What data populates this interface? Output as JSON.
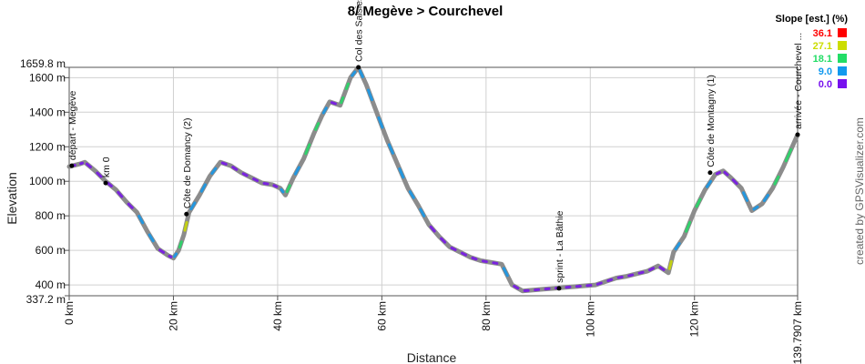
{
  "chart_data": {
    "type": "line",
    "title": "8/ Megève > Courchevel",
    "xlabel": "Distance",
    "ylabel": "Elevation",
    "xlim": [
      0,
      139.7907
    ],
    "ylim": [
      337.2,
      1659.8
    ],
    "x_ticks": [
      {
        "value": 0,
        "label": "0 km"
      },
      {
        "value": 20,
        "label": "20 km"
      },
      {
        "value": 40,
        "label": "40 km"
      },
      {
        "value": 60,
        "label": "60 km"
      },
      {
        "value": 80,
        "label": "80 km"
      },
      {
        "value": 100,
        "label": "100 km"
      },
      {
        "value": 120,
        "label": "120 km"
      },
      {
        "value": 139.7907,
        "label": "139.7907 km"
      }
    ],
    "y_ticks": [
      {
        "value": 337.2,
        "label": "337.2 m"
      },
      {
        "value": 400,
        "label": "400 m"
      },
      {
        "value": 600,
        "label": "600 m"
      },
      {
        "value": 800,
        "label": "800 m"
      },
      {
        "value": 1000,
        "label": "1000 m"
      },
      {
        "value": 1200,
        "label": "1200 m"
      },
      {
        "value": 1400,
        "label": "1400 m"
      },
      {
        "value": 1600,
        "label": "1600 m"
      },
      {
        "value": 1659.8,
        "label": "1659.8 m"
      }
    ],
    "grid": true,
    "x": [
      0,
      2,
      3,
      5,
      7,
      9,
      11,
      13,
      15,
      17,
      19,
      20,
      21,
      22,
      23,
      25,
      27,
      29,
      31,
      33,
      35,
      37,
      39,
      40.5,
      41.5,
      43,
      45,
      47,
      48.5,
      50,
      52,
      53,
      54,
      55.5,
      57,
      59,
      61,
      63,
      65,
      67,
      69,
      71,
      73,
      75,
      77,
      79,
      81,
      83,
      85,
      87,
      89,
      91,
      93,
      95,
      97,
      99,
      101,
      103,
      105,
      107,
      109,
      111,
      113,
      115,
      116,
      118,
      120,
      122,
      124,
      125.5,
      127,
      129,
      131,
      133,
      135,
      137,
      139.79
    ],
    "y": [
      1085,
      1100,
      1110,
      1060,
      1000,
      950,
      880,
      820,
      710,
      610,
      570,
      555,
      600,
      690,
      820,
      920,
      1030,
      1110,
      1090,
      1050,
      1020,
      990,
      980,
      960,
      920,
      1020,
      1130,
      1280,
      1380,
      1460,
      1440,
      1520,
      1600,
      1659.8,
      1560,
      1400,
      1240,
      1100,
      960,
      860,
      750,
      680,
      620,
      590,
      560,
      540,
      530,
      520,
      400,
      365,
      370,
      375,
      380,
      385,
      390,
      395,
      400,
      420,
      440,
      450,
      465,
      480,
      510,
      470,
      590,
      680,
      830,
      950,
      1040,
      1060,
      1020,
      960,
      830,
      870,
      960,
      1080,
      1270
    ],
    "waypoints": [
      {
        "x": 0.5,
        "y": 1090,
        "label": "départ - Megève"
      },
      {
        "x": 7,
        "y": 990,
        "label": "km 0"
      },
      {
        "x": 22.5,
        "y": 810,
        "label": "Côte de Domancy (2)"
      },
      {
        "x": 55.5,
        "y": 1659.8,
        "label": "Col des Saisies"
      },
      {
        "x": 94,
        "y": 380,
        "label": "sprint - La Bâthie"
      },
      {
        "x": 123,
        "y": 1050,
        "label": "Côte de Montagny (1)"
      },
      {
        "x": 139.79,
        "y": 1270,
        "label": "arrivée - Courchevel ..."
      }
    ],
    "legend": {
      "title": "Slope [est.] (%)",
      "placement": "top-right",
      "entries": [
        {
          "label": "36.1",
          "color": "#ff0000"
        },
        {
          "label": "27.1",
          "color": "#ccdd00"
        },
        {
          "label": "18.1",
          "color": "#22dd66"
        },
        {
          "label": "9.0",
          "color": "#1199ee"
        },
        {
          "label": "0.0",
          "color": "#7711ee"
        }
      ]
    }
  },
  "credit": "created by GPSVisualizer.com",
  "colors": {
    "profile": "#8c8c8c",
    "grid": "#d0d0d0",
    "axis": "#555555"
  }
}
